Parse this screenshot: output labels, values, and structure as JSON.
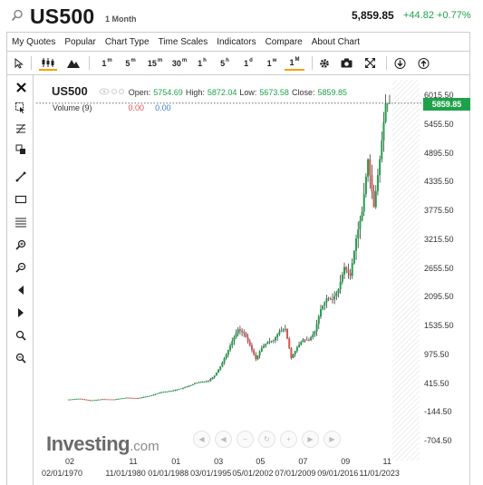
{
  "header": {
    "symbol": "US500",
    "timeframe": "1 Month",
    "price": "5,859.85",
    "change": "+44.82 +0.77%"
  },
  "menu": [
    "My Quotes",
    "Popular",
    "Chart Type",
    "Time Scales",
    "Indicators",
    "Compare",
    "About Chart"
  ],
  "toolbar": {
    "intervals": [
      {
        "label": "1",
        "sup": "m"
      },
      {
        "label": "5",
        "sup": "m"
      },
      {
        "label": "15",
        "sup": "m"
      },
      {
        "label": "30",
        "sup": "m"
      },
      {
        "label": "1",
        "sup": "h"
      },
      {
        "label": "5",
        "sup": "h"
      },
      {
        "label": "1",
        "sup": "d"
      },
      {
        "label": "1",
        "sup": "w"
      },
      {
        "label": "1",
        "sup": "M"
      }
    ],
    "active_interval": "1M"
  },
  "legend": {
    "symbol": "US500",
    "open_label": "Open:",
    "open": "5754.69",
    "high_label": "High:",
    "high": "5872.04",
    "low_label": "Low:",
    "low": "5673.58",
    "close_label": "Close:",
    "close": "5859.85",
    "volume_label": "Volume (9)",
    "volume_val1": "0.00",
    "volume_val2": "0.00"
  },
  "price_tag": "5859.85",
  "logo": {
    "brand": "Investing",
    "suffix": ".com"
  },
  "colors": {
    "up": "#1fa14b",
    "down": "#d9534f",
    "accent": "#f0a500"
  },
  "chart_data": {
    "type": "line",
    "title": "US500",
    "subtitle": "1 Month",
    "y_ticks": [
      "6015.50",
      "5455.50",
      "4895.50",
      "4335.50",
      "3775.50",
      "3215.50",
      "2655.50",
      "2095.50",
      "1535.50",
      "975.50",
      "415.50",
      "-144.50",
      "-704.50"
    ],
    "x_ticks_top": [
      "02",
      "11",
      "01",
      "03",
      "05",
      "07",
      "09",
      "11"
    ],
    "x_ticks_bottom": [
      "02/01/1970",
      "11/01/1980",
      "01/01/1988",
      "03/01/1995",
      "05/01/2002",
      "07/01/2009",
      "09/01/2016",
      "11/01/2023"
    ],
    "ylim": [
      -704.5,
      6015.5
    ],
    "last_value": 5859.85,
    "series": [
      {
        "x": [
          1970,
          1972,
          1974,
          1976,
          1978,
          1980,
          1982,
          1984,
          1986,
          1987,
          1988,
          1990,
          1992,
          1994,
          1995,
          1996,
          1997,
          1998,
          1999,
          2000,
          2001,
          2002,
          2003,
          2004,
          2005,
          2006,
          2007,
          2008,
          2009,
          2010,
          2011,
          2012,
          2013,
          2014,
          2015,
          2016,
          2017,
          2018,
          2019,
          2020,
          2021,
          2022,
          2023,
          2024
        ],
        "values": [
          90,
          110,
          75,
          100,
          95,
          130,
          120,
          165,
          240,
          250,
          270,
          330,
          420,
          460,
          560,
          740,
          970,
          1230,
          1460,
          1380,
          1150,
          880,
          1100,
          1210,
          1250,
          1420,
          1470,
          900,
          1110,
          1260,
          1250,
          1420,
          1850,
          2060,
          2040,
          2240,
          2670,
          2500,
          3230,
          3750,
          4770,
          3840,
          4770,
          5860
        ]
      }
    ]
  }
}
